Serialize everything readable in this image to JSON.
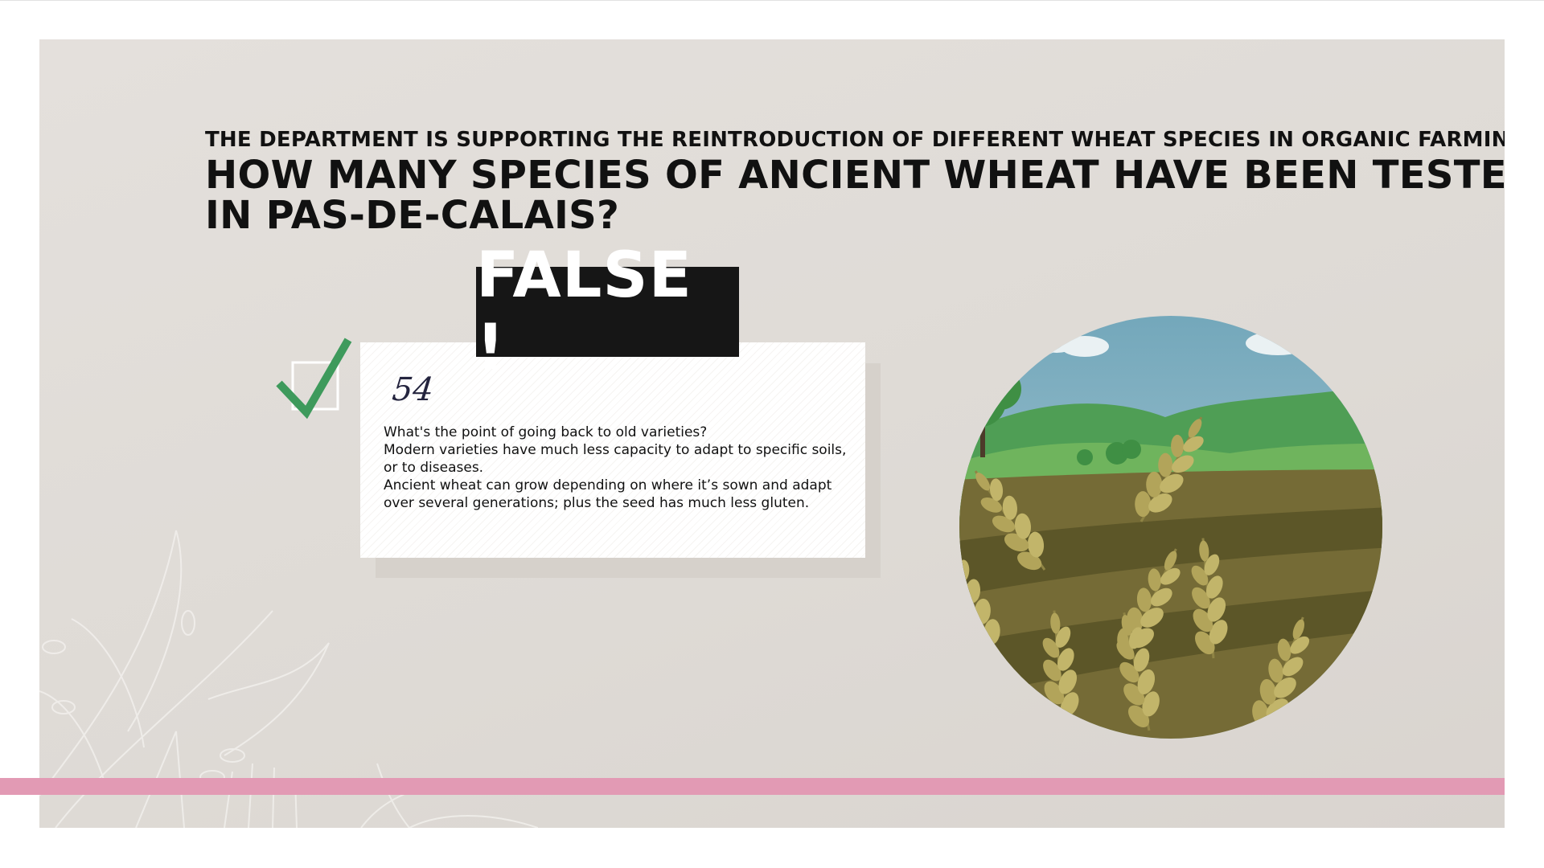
{
  "question": {
    "intro": "THE DEPARTMENT IS SUPPORTING THE REINTRODUCTION OF DIFFERENT WHEAT SPECIES IN ORGANIC FARMING:",
    "line1": "HOW MANY SPECIES OF ANCIENT WHEAT HAVE BEEN TESTED",
    "line2": "IN PAS-DE-CALAIS?"
  },
  "verdict": {
    "label": "FALSE !"
  },
  "answer": {
    "number": "54",
    "lines": [
      "What's the point of going back to old varieties?",
      "Modern varieties have much less capacity to adapt to specific soils, or to diseases.",
      "Ancient wheat can grow depending on where it’s sown and adapt over several generations; plus the seed has much less gluten."
    ]
  },
  "icons": {
    "check": "checkmark-icon",
    "illustration": "wheat-field-illustration",
    "decoration": "leaf-outline-decoration"
  },
  "colors": {
    "panel_background": "#e0dcd7",
    "verdict_background": "#161616",
    "check_green": "#3e9a5c",
    "accent_bar": "#e29ab4"
  }
}
